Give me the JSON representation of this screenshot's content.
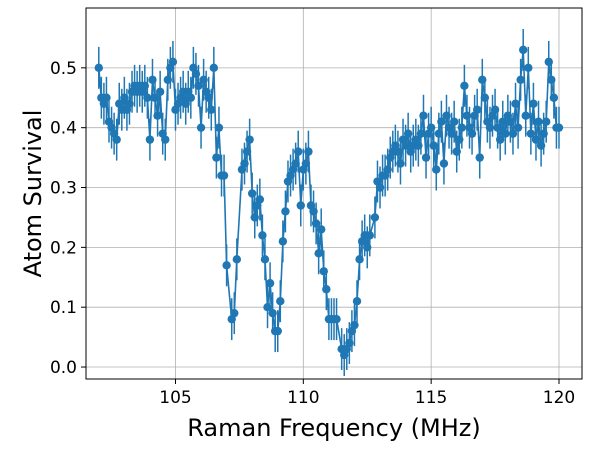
{
  "chart_data": {
    "type": "line",
    "title": "",
    "xlabel": "Raman Frequency (MHz)",
    "ylabel": "Atom Survival",
    "xlim": [
      101.5,
      120.9
    ],
    "ylim": [
      -0.02,
      0.6
    ],
    "xticks": [
      105,
      110,
      115,
      120
    ],
    "xtick_labels": [
      "105",
      "110",
      "115",
      "120"
    ],
    "yticks": [
      0.0,
      0.1,
      0.2,
      0.3,
      0.4,
      0.5
    ],
    "ytick_labels": [
      "0.0",
      "0.1",
      "0.2",
      "0.3",
      "0.4",
      "0.5"
    ],
    "grid": true,
    "color": "#1f77b4",
    "series": [
      {
        "name": "",
        "marker": "circle",
        "errorbar": 0.035,
        "points": [
          [
            102.0,
            0.5
          ],
          [
            102.1,
            0.45
          ],
          [
            102.2,
            0.44
          ],
          [
            102.3,
            0.45
          ],
          [
            102.4,
            0.41
          ],
          [
            102.5,
            0.4
          ],
          [
            102.6,
            0.39
          ],
          [
            102.7,
            0.38
          ],
          [
            102.8,
            0.44
          ],
          [
            102.9,
            0.43
          ],
          [
            103.0,
            0.45
          ],
          [
            103.1,
            0.43
          ],
          [
            103.2,
            0.44
          ],
          [
            103.3,
            0.46
          ],
          [
            103.4,
            0.47
          ],
          [
            103.5,
            0.46
          ],
          [
            103.6,
            0.47
          ],
          [
            103.7,
            0.46
          ],
          [
            103.8,
            0.47
          ],
          [
            103.9,
            0.45
          ],
          [
            104.0,
            0.38
          ],
          [
            104.1,
            0.48
          ],
          [
            104.2,
            0.45
          ],
          [
            104.3,
            0.42
          ],
          [
            104.4,
            0.46
          ],
          [
            104.5,
            0.39
          ],
          [
            104.6,
            0.38
          ],
          [
            104.7,
            0.48
          ],
          [
            104.8,
            0.5
          ],
          [
            104.9,
            0.51
          ],
          [
            105.0,
            0.43
          ],
          [
            105.1,
            0.44
          ],
          [
            105.2,
            0.45
          ],
          [
            105.3,
            0.46
          ],
          [
            105.4,
            0.44
          ],
          [
            105.5,
            0.46
          ],
          [
            105.6,
            0.45
          ],
          [
            105.7,
            0.5
          ],
          [
            105.8,
            0.49
          ],
          [
            105.9,
            0.47
          ],
          [
            106.0,
            0.4
          ],
          [
            106.1,
            0.48
          ],
          [
            106.2,
            0.46
          ],
          [
            106.3,
            0.45
          ],
          [
            106.4,
            0.43
          ],
          [
            106.5,
            0.5
          ],
          [
            106.6,
            0.35
          ],
          [
            106.7,
            0.4
          ],
          [
            106.8,
            0.32
          ],
          [
            106.9,
            0.32
          ],
          [
            107.0,
            0.17
          ],
          [
            107.2,
            0.08
          ],
          [
            107.3,
            0.09
          ],
          [
            107.4,
            0.18
          ],
          [
            107.6,
            0.33
          ],
          [
            107.7,
            0.34
          ],
          [
            107.8,
            0.36
          ],
          [
            107.9,
            0.38
          ],
          [
            108.0,
            0.29
          ],
          [
            108.1,
            0.25
          ],
          [
            108.2,
            0.27
          ],
          [
            108.3,
            0.28
          ],
          [
            108.4,
            0.22
          ],
          [
            108.5,
            0.18
          ],
          [
            108.6,
            0.1
          ],
          [
            108.7,
            0.14
          ],
          [
            108.8,
            0.09
          ],
          [
            108.9,
            0.06
          ],
          [
            109.0,
            0.06
          ],
          [
            109.1,
            0.11
          ],
          [
            109.2,
            0.21
          ],
          [
            109.3,
            0.26
          ],
          [
            109.4,
            0.31
          ],
          [
            109.5,
            0.32
          ],
          [
            109.6,
            0.33
          ],
          [
            109.7,
            0.34
          ],
          [
            109.8,
            0.36
          ],
          [
            109.9,
            0.27
          ],
          [
            110.0,
            0.33
          ],
          [
            110.1,
            0.34
          ],
          [
            110.2,
            0.36
          ],
          [
            110.3,
            0.27
          ],
          [
            110.4,
            0.26
          ],
          [
            110.5,
            0.24
          ],
          [
            110.6,
            0.19
          ],
          [
            110.7,
            0.23
          ],
          [
            110.8,
            0.16
          ],
          [
            110.9,
            0.13
          ],
          [
            111.0,
            0.08
          ],
          [
            111.1,
            0.08
          ],
          [
            111.2,
            0.08
          ],
          [
            111.3,
            0.08
          ],
          [
            111.5,
            0.03
          ],
          [
            111.6,
            0.02
          ],
          [
            111.7,
            0.03
          ],
          [
            111.8,
            0.04
          ],
          [
            111.9,
            0.06
          ],
          [
            112.0,
            0.07
          ],
          [
            112.1,
            0.11
          ],
          [
            112.2,
            0.18
          ],
          [
            112.3,
            0.21
          ],
          [
            112.4,
            0.22
          ],
          [
            112.5,
            0.2
          ],
          [
            112.6,
            0.22
          ],
          [
            112.8,
            0.25
          ],
          [
            112.9,
            0.31
          ],
          [
            113.0,
            0.3
          ],
          [
            113.1,
            0.32
          ],
          [
            113.2,
            0.32
          ],
          [
            113.3,
            0.33
          ],
          [
            113.4,
            0.35
          ],
          [
            113.5,
            0.36
          ],
          [
            113.6,
            0.37
          ],
          [
            113.7,
            0.36
          ],
          [
            113.8,
            0.34
          ],
          [
            113.9,
            0.38
          ],
          [
            114.0,
            0.37
          ],
          [
            114.1,
            0.39
          ],
          [
            114.2,
            0.36
          ],
          [
            114.3,
            0.37
          ],
          [
            114.4,
            0.38
          ],
          [
            114.5,
            0.37
          ],
          [
            114.6,
            0.39
          ],
          [
            114.7,
            0.42
          ],
          [
            114.8,
            0.35
          ],
          [
            114.9,
            0.39
          ],
          [
            115.0,
            0.4
          ],
          [
            115.1,
            0.37
          ],
          [
            115.2,
            0.33
          ],
          [
            115.3,
            0.39
          ],
          [
            115.4,
            0.41
          ],
          [
            115.5,
            0.34
          ],
          [
            115.6,
            0.42
          ],
          [
            115.7,
            0.4
          ],
          [
            115.8,
            0.39
          ],
          [
            115.9,
            0.41
          ],
          [
            116.0,
            0.36
          ],
          [
            116.1,
            0.38
          ],
          [
            116.2,
            0.4
          ],
          [
            116.3,
            0.47
          ],
          [
            116.4,
            0.42
          ],
          [
            116.5,
            0.4
          ],
          [
            116.6,
            0.39
          ],
          [
            116.7,
            0.42
          ],
          [
            116.8,
            0.43
          ],
          [
            116.9,
            0.35
          ],
          [
            117.0,
            0.48
          ],
          [
            117.1,
            0.45
          ],
          [
            117.2,
            0.41
          ],
          [
            117.3,
            0.4
          ],
          [
            117.4,
            0.42
          ],
          [
            117.5,
            0.43
          ],
          [
            117.6,
            0.4
          ],
          [
            117.7,
            0.38
          ],
          [
            117.8,
            0.41
          ],
          [
            117.9,
            0.39
          ],
          [
            118.0,
            0.42
          ],
          [
            118.1,
            0.41
          ],
          [
            118.2,
            0.39
          ],
          [
            118.3,
            0.44
          ],
          [
            118.4,
            0.4
          ],
          [
            118.5,
            0.48
          ],
          [
            118.6,
            0.53
          ],
          [
            118.7,
            0.42
          ],
          [
            118.8,
            0.5
          ],
          [
            118.9,
            0.39
          ],
          [
            119.0,
            0.44
          ],
          [
            119.1,
            0.38
          ],
          [
            119.2,
            0.41
          ],
          [
            119.3,
            0.37
          ],
          [
            119.4,
            0.39
          ],
          [
            119.5,
            0.41
          ],
          [
            119.6,
            0.51
          ],
          [
            119.7,
            0.48
          ],
          [
            119.8,
            0.45
          ],
          [
            119.9,
            0.4
          ],
          [
            120.0,
            0.4
          ]
        ]
      }
    ]
  }
}
